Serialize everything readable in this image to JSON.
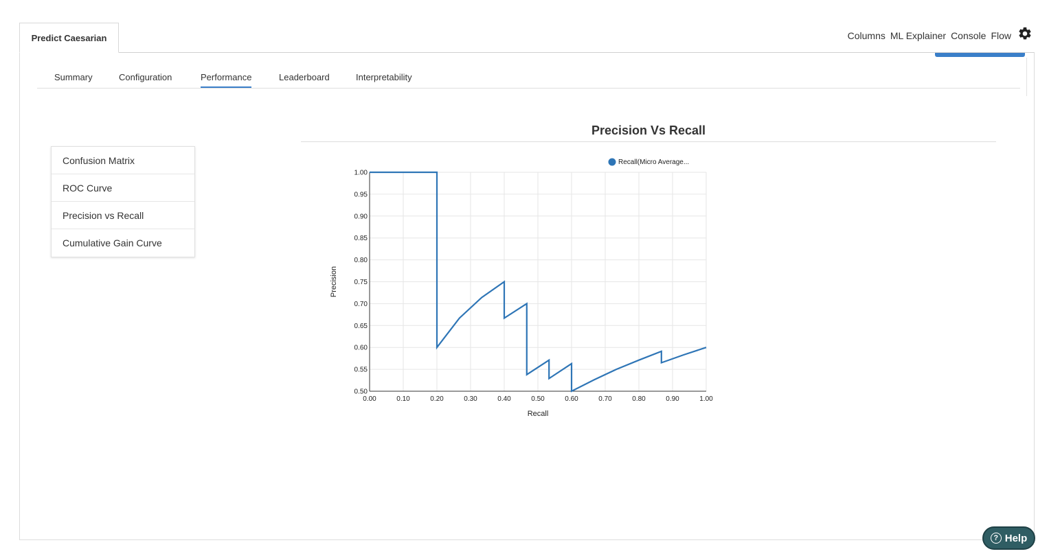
{
  "doc_tab": {
    "label": "Predict Caesarian"
  },
  "top_nav": {
    "items": [
      "Columns",
      "ML Explainer",
      "Console",
      "Flow"
    ],
    "settings_icon": "gear-icon"
  },
  "sub_tabs": {
    "items": [
      "Summary",
      "Configuration",
      "Performance",
      "Leaderboard",
      "Interpretability"
    ],
    "active": "Performance"
  },
  "side_menu": {
    "items": [
      "Confusion Matrix",
      "ROC Curve",
      "Precision vs Recall",
      "Cumulative Gain Curve"
    ]
  },
  "help": {
    "label": "Help",
    "icon": "help-circle-icon"
  },
  "colors": {
    "accent": "#3a7fc9",
    "line": "#2e75b6",
    "help_bg": "#2f5d63"
  },
  "chart_data": {
    "type": "line",
    "title": "Precision Vs Recall",
    "xlabel": "Recall",
    "ylabel": "Precision",
    "xlim": [
      0,
      1
    ],
    "ylim": [
      0.5,
      1
    ],
    "x_ticks": [
      "0.00",
      "0.10",
      "0.20",
      "0.30",
      "0.40",
      "0.50",
      "0.60",
      "0.70",
      "0.80",
      "0.90",
      "1.00"
    ],
    "y_ticks": [
      "0.50",
      "0.55",
      "0.60",
      "0.65",
      "0.70",
      "0.75",
      "0.80",
      "0.85",
      "0.90",
      "0.95",
      "1.00"
    ],
    "grid": true,
    "legend_position": "top-right",
    "series": [
      {
        "name": "Recall(Micro Average...",
        "color": "#2e75b6",
        "x": [
          0,
          0.2,
          0.2,
          0.267,
          0.333,
          0.4,
          0.4,
          0.467,
          0.467,
          0.533,
          0.533,
          0.6,
          0.6,
          0.667,
          0.733,
          0.8,
          0.867,
          0.867,
          0.933,
          1.0
        ],
        "y": [
          1.0,
          1.0,
          0.6,
          0.667,
          0.714,
          0.75,
          0.667,
          0.7,
          0.538,
          0.571,
          0.529,
          0.563,
          0.5,
          0.526,
          0.55,
          0.571,
          0.591,
          0.565,
          0.583,
          0.6
        ]
      }
    ]
  }
}
